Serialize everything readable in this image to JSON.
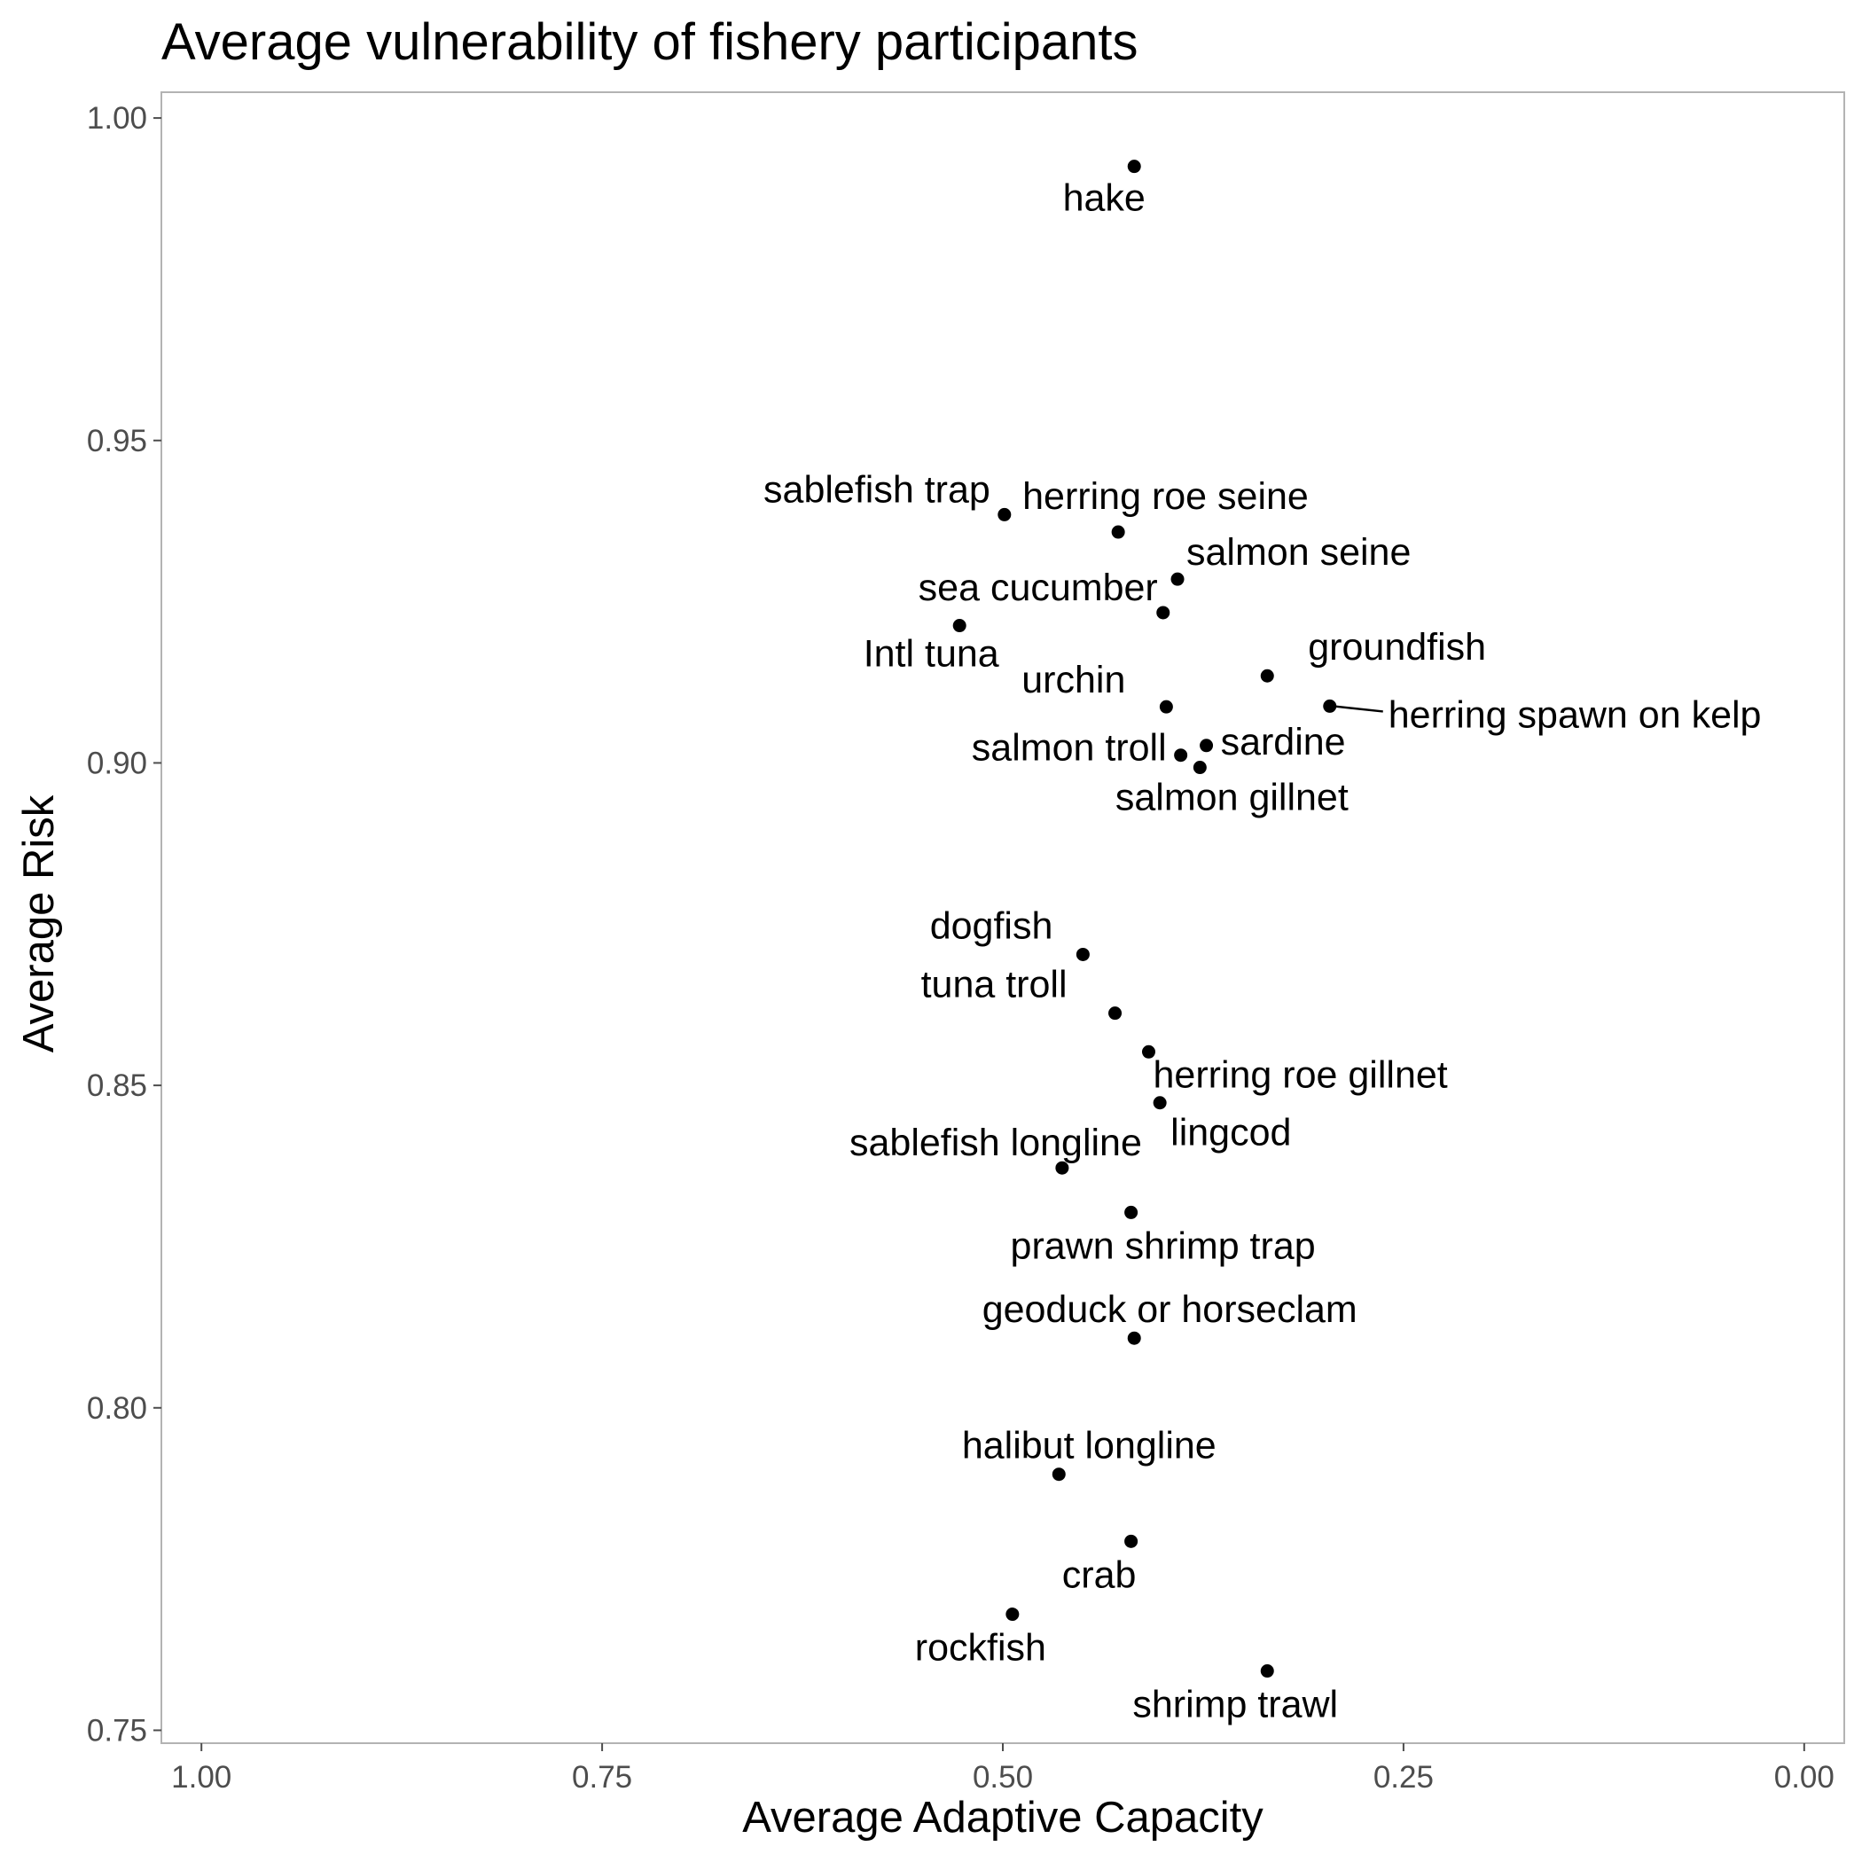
{
  "chart_data": {
    "type": "scatter",
    "title": "Average vulnerability of fishery participants",
    "xlabel": "Average Adaptive Capacity",
    "ylabel": "Average Risk",
    "xlim": [
      1.025,
      -0.025
    ],
    "ylim": [
      0.748,
      1.004
    ],
    "x_reversed": true,
    "x_ticks": [
      1.0,
      0.75,
      0.5,
      0.25,
      0.0
    ],
    "x_tick_labels": [
      "1.00",
      "0.75",
      "0.50",
      "0.25",
      "0.00"
    ],
    "y_ticks": [
      0.75,
      0.8,
      0.85,
      0.9,
      0.95,
      1.0
    ],
    "y_tick_labels": [
      "0.75",
      "0.80",
      "0.85",
      "0.90",
      "0.95",
      "1.00"
    ],
    "grid": false,
    "legend": "none",
    "point_color": "#000000",
    "points": [
      {
        "label": "hake",
        "x": 0.418,
        "y": 0.9925,
        "label_pos": "below-left"
      },
      {
        "label": "sablefish trap",
        "x": 0.499,
        "y": 0.9385,
        "label_pos": "above-left"
      },
      {
        "label": "herring roe seine",
        "x": 0.428,
        "y": 0.9358,
        "label_pos": "above-right"
      },
      {
        "label": "salmon seine",
        "x": 0.391,
        "y": 0.9285,
        "label_pos": "above-right"
      },
      {
        "label": "sea cucumber",
        "x": 0.4,
        "y": 0.9233,
        "label_pos": "above-left"
      },
      {
        "label": "Intl tuna",
        "x": 0.527,
        "y": 0.9213,
        "label_pos": "below-left"
      },
      {
        "label": "groundfish",
        "x": 0.335,
        "y": 0.9135,
        "label_pos": "above-right"
      },
      {
        "label": "urchin",
        "x": 0.398,
        "y": 0.9087,
        "label_pos": "above-left"
      },
      {
        "label": "herring spawn on kelp",
        "x": 0.296,
        "y": 0.9088,
        "label_pos": "right-leader"
      },
      {
        "label": "sardine",
        "x": 0.373,
        "y": 0.9027,
        "label_pos": "right"
      },
      {
        "label": "salmon troll",
        "x": 0.389,
        "y": 0.9012,
        "label_pos": "left"
      },
      {
        "label": "salmon gillnet",
        "x": 0.377,
        "y": 0.8993,
        "label_pos": "below"
      },
      {
        "label": "dogfish",
        "x": 0.45,
        "y": 0.8703,
        "label_pos": "above-left"
      },
      {
        "label": "tuna troll",
        "x": 0.43,
        "y": 0.8612,
        "label_pos": "above-left"
      },
      {
        "label": "herring roe gillnet",
        "x": 0.409,
        "y": 0.8552,
        "label_pos": "below-right"
      },
      {
        "label": "lingcod",
        "x": 0.402,
        "y": 0.8473,
        "label_pos": "below-right"
      },
      {
        "label": "sablefish longline",
        "x": 0.463,
        "y": 0.8372,
        "label_pos": "above-left"
      },
      {
        "label": "prawn shrimp trap",
        "x": 0.42,
        "y": 0.8303,
        "label_pos": "below"
      },
      {
        "label": "geoduck or horseclam",
        "x": 0.418,
        "y": 0.8108,
        "label_pos": "above"
      },
      {
        "label": "halibut longline",
        "x": 0.465,
        "y": 0.7897,
        "label_pos": "above"
      },
      {
        "label": "crab",
        "x": 0.42,
        "y": 0.7793,
        "label_pos": "below-left"
      },
      {
        "label": "rockfish",
        "x": 0.494,
        "y": 0.768,
        "label_pos": "below-left"
      },
      {
        "label": "shrimp trawl",
        "x": 0.335,
        "y": 0.7592,
        "label_pos": "below"
      }
    ]
  }
}
